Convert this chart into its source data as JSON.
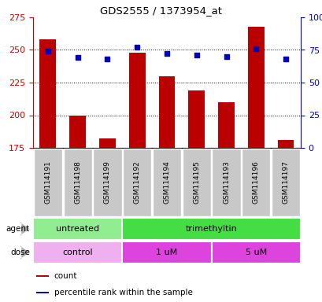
{
  "title": "GDS2555 / 1373954_at",
  "samples": [
    "GSM114191",
    "GSM114198",
    "GSM114199",
    "GSM114192",
    "GSM114194",
    "GSM114195",
    "GSM114193",
    "GSM114196",
    "GSM114197"
  ],
  "counts": [
    258,
    200,
    182,
    248,
    230,
    219,
    210,
    268,
    181
  ],
  "percentile_ranks": [
    74,
    69,
    68,
    77,
    72,
    71,
    70,
    76,
    68
  ],
  "ymin": 175,
  "ymax": 275,
  "yticks_left": [
    175,
    200,
    225,
    250,
    275
  ],
  "yticks_right": [
    0,
    25,
    50,
    75,
    100
  ],
  "bar_color": "#bb0000",
  "dot_color": "#0000bb",
  "bar_bottom": 175,
  "agent_groups": [
    {
      "label": "untreated",
      "start": 0,
      "end": 3,
      "color": "#90ee90"
    },
    {
      "label": "trimethyltin",
      "start": 3,
      "end": 9,
      "color": "#44dd44"
    }
  ],
  "dose_groups": [
    {
      "label": "control",
      "start": 0,
      "end": 3,
      "color": "#f0b0f0"
    },
    {
      "label": "1 uM",
      "start": 3,
      "end": 6,
      "color": "#dd44dd"
    },
    {
      "label": "5 uM",
      "start": 6,
      "end": 9,
      "color": "#dd44dd"
    }
  ],
  "legend_count_label": "count",
  "legend_pct_label": "percentile rank within the sample",
  "agent_label": "agent",
  "dose_label": "dose"
}
